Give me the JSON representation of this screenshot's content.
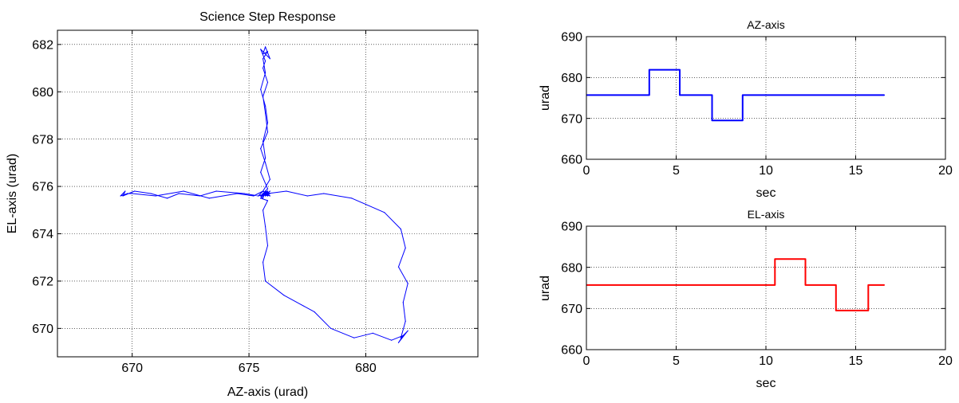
{
  "chart_data": [
    {
      "type": "line",
      "title": "Science Step Response",
      "xlabel": "AZ-axis (urad)",
      "ylabel": "EL-axis (urad)",
      "xlim": [
        666.8,
        684.8
      ],
      "ylim": [
        668.8,
        682.6
      ],
      "xticks": [
        670,
        675,
        680
      ],
      "yticks": [
        670,
        672,
        674,
        676,
        678,
        680,
        682
      ],
      "grid": true,
      "series": [
        {
          "color": "#0000ff",
          "x": [
            675.7,
            675.6,
            675.8,
            675.6,
            675.7,
            675.5,
            675.8,
            675.6,
            675.4,
            675.7,
            675.6,
            675.9,
            675.7,
            675.5,
            675.8,
            675.7,
            675.6,
            675.8,
            675.6,
            675.7,
            675.5,
            675.8,
            675.6,
            675.9,
            675.7,
            675.6,
            675.8,
            675.6,
            675.7,
            675.5,
            675.7,
            675.8,
            675.6,
            675.7,
            675.5,
            675.8,
            675.6,
            675.7,
            675.9,
            675.6,
            675.7,
            675.5,
            675.8,
            675.6,
            675.7,
            675.8,
            675.6,
            675.7,
            676.5,
            677.8,
            678.5,
            679.5,
            680.3,
            681.1,
            681.6,
            681.4,
            681.8,
            681.5,
            681.7,
            681.6,
            681.8,
            681.4,
            681.7,
            681.5,
            680.8,
            679.4,
            678.2,
            677.5,
            676.6,
            675.8,
            675.6,
            675.7,
            675.9,
            675.5,
            675.6,
            675.7,
            675.8,
            675.7,
            675.6,
            675.4,
            674.8,
            673.6,
            672.9,
            672.0,
            671.5,
            670.8,
            670.1,
            669.6,
            669.8,
            669.5,
            669.7,
            669.6,
            669.8,
            670.0,
            671.0,
            672.2,
            673.3,
            674.5,
            675.2,
            675.6,
            675.7,
            675.6,
            675.8,
            675.7,
            675.6,
            675.8,
            675.6,
            675.8,
            675.6,
            675.7,
            675.9,
            675.6,
            675.7,
            675.5,
            675.8,
            675.6,
            675.7,
            675.8,
            675.6,
            675.7,
            675.8,
            675.6,
            675.7,
            675.5,
            675.8,
            675.7,
            675.6,
            675.8,
            675.7
          ],
          "y": [
            675.7,
            675.6,
            675.8,
            675.6,
            675.8,
            675.6,
            675.7,
            675.8,
            675.6,
            675.7,
            675.8,
            676.3,
            677.0,
            677.6,
            678.3,
            679.1,
            679.8,
            680.4,
            681.0,
            681.3,
            681.8,
            681.5,
            681.7,
            681.4,
            681.9,
            681.6,
            681.7,
            681.4,
            680.8,
            680.1,
            679.4,
            678.7,
            677.9,
            677.2,
            676.6,
            675.9,
            675.7,
            675.6,
            675.8,
            675.6,
            675.7,
            675.5,
            675.4,
            675.0,
            674.3,
            673.5,
            672.8,
            672.0,
            671.4,
            670.7,
            670.0,
            669.6,
            669.8,
            669.5,
            669.7,
            669.4,
            669.9,
            669.6,
            670.3,
            671.1,
            671.9,
            672.6,
            673.4,
            674.2,
            674.9,
            675.5,
            675.7,
            675.6,
            675.8,
            675.7,
            675.6,
            675.8,
            675.7,
            675.6,
            675.5,
            675.8,
            675.6,
            675.7,
            675.8,
            675.6,
            675.7,
            675.8,
            675.6,
            675.7,
            675.5,
            675.7,
            675.8,
            675.6,
            675.7,
            675.6,
            675.8,
            675.6,
            675.7,
            675.7,
            675.6,
            675.8,
            675.5,
            675.7,
            675.6,
            675.8,
            675.7,
            675.8,
            675.6,
            675.8,
            675.7,
            675.6,
            675.8,
            675.6,
            675.7,
            675.8,
            675.6,
            675.7,
            675.8,
            675.6,
            675.8,
            675.7,
            675.6,
            675.8,
            675.6,
            675.7,
            675.8,
            675.6,
            675.7,
            675.5,
            675.8,
            675.6,
            675.7,
            675.8,
            675.7
          ]
        }
      ]
    },
    {
      "type": "line",
      "title": "AZ-axis",
      "xlabel": "sec",
      "ylabel": "urad",
      "xlim": [
        0,
        20
      ],
      "ylim": [
        660,
        690
      ],
      "xticks": [
        0,
        5,
        10,
        15,
        20
      ],
      "yticks": [
        660,
        670,
        680,
        690
      ],
      "grid": true,
      "series": [
        {
          "color": "#0000ff",
          "x": [
            0,
            3.5,
            3.5,
            5.2,
            5.2,
            7.0,
            7.0,
            8.7,
            8.7,
            16.6
          ],
          "y": [
            675.7,
            675.7,
            681.9,
            681.9,
            675.7,
            675.7,
            669.5,
            669.5,
            675.7,
            675.7
          ]
        }
      ]
    },
    {
      "type": "line",
      "title": "EL-axis",
      "xlabel": "sec",
      "ylabel": "urad",
      "xlim": [
        0,
        20
      ],
      "ylim": [
        660,
        690
      ],
      "xticks": [
        0,
        5,
        10,
        15,
        20
      ],
      "yticks": [
        660,
        670,
        680,
        690
      ],
      "grid": true,
      "series": [
        {
          "color": "#ff0000",
          "x": [
            0,
            10.5,
            10.5,
            12.2,
            12.2,
            13.9,
            13.9,
            15.7,
            15.7,
            16.6
          ],
          "y": [
            675.7,
            675.7,
            682.0,
            682.0,
            675.7,
            675.7,
            669.5,
            669.5,
            675.7,
            675.7
          ]
        }
      ]
    }
  ]
}
